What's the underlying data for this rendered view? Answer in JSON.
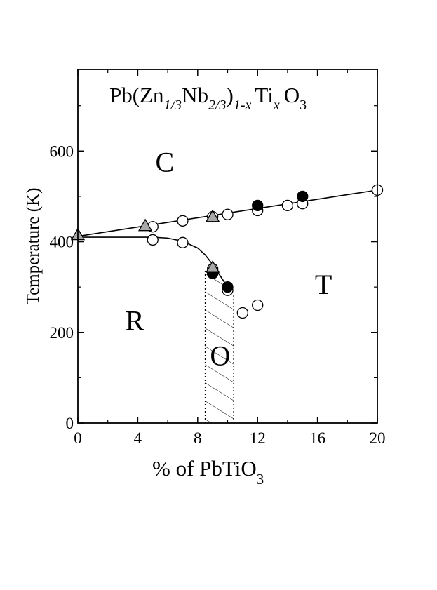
{
  "chart_data": {
    "type": "scatter",
    "title": {
      "pre": "Pb(Zn",
      "s1": "1/3",
      "mid": "Nb",
      "s2": "2/3",
      "post": ")",
      "s3": "1-x",
      "ti": "Ti",
      "s4": "x",
      "o": "O",
      "s5": "3"
    },
    "xlabel": {
      "main": "% of PbTiO",
      "sub": "3"
    },
    "ylabel": "Temperature (K)",
    "xlim": [
      0,
      20
    ],
    "ylim": [
      0,
      780
    ],
    "xticks": [
      0,
      4,
      8,
      12,
      16,
      20
    ],
    "xtick_labels": [
      "0",
      "4",
      "8",
      "12",
      "16",
      "20"
    ],
    "yticks": [
      0,
      200,
      400,
      600
    ],
    "ytick_labels": [
      "0",
      "200",
      "400",
      "600"
    ],
    "grid": false,
    "region_labels": [
      {
        "text": "C",
        "x": 5.8,
        "y": 555
      },
      {
        "text": "T",
        "x": 16.4,
        "y": 285
      },
      {
        "text": "R",
        "x": 3.8,
        "y": 205
      },
      {
        "text": "O",
        "x": 9.5,
        "y": 128
      }
    ],
    "series": [
      {
        "marker": "open-circle",
        "x": [
          5,
          7,
          9,
          10,
          12,
          14,
          15,
          20,
          5,
          7,
          9,
          10,
          11,
          12
        ],
        "y": [
          433,
          446,
          455,
          460,
          469,
          480,
          484,
          514,
          404,
          398,
          340,
          293,
          243,
          260
        ]
      },
      {
        "marker": "filled-circle",
        "x": [
          12,
          15,
          9,
          10
        ],
        "y": [
          480,
          500,
          330,
          300
        ]
      },
      {
        "marker": "gray-triangle",
        "x": [
          0,
          4.5,
          9,
          9
        ],
        "y": [
          415,
          435,
          455,
          343
        ]
      }
    ],
    "lines": [
      {
        "name": "C-boundary",
        "x": [
          0,
          20
        ],
        "y": [
          412,
          514
        ]
      },
      {
        "name": "R-boundary",
        "x": [
          0,
          5,
          6,
          7,
          8,
          8.5,
          9,
          9.5,
          10,
          10.3
        ],
        "y": [
          410,
          410,
          408,
          401,
          386,
          371,
          350,
          325,
          300,
          288
        ]
      }
    ],
    "shaded_region": {
      "name": "O",
      "x": [
        8.5,
        10.4
      ],
      "y": [
        0,
        340
      ],
      "pattern": "hatched"
    }
  }
}
